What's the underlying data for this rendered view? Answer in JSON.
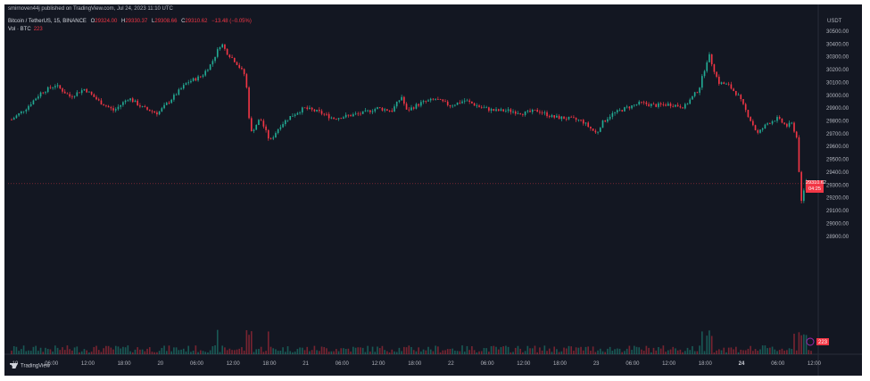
{
  "header": {
    "publisher": "smirnoven44j published on TradingView.com, Jul 24, 2023 11:10 UTC",
    "symbol": "Bitcoin / TetherUS, 15, BINANCE",
    "open_label": "O",
    "open": "29324.00",
    "high_label": "H",
    "high": "29330.37",
    "low_label": "L",
    "low": "29308.66",
    "close_label": "C",
    "close": "29310.62",
    "change": "−13.48 (−0.05%)",
    "vol_label": "Vol · BTC",
    "vol_value": "223",
    "currency": "USDT",
    "brand": "TradingView"
  },
  "price_tag": {
    "price": "29310.62",
    "countdown": "04:25"
  },
  "volume_tag": "223",
  "colors": {
    "up": "#22ab94",
    "down": "#f23645",
    "background": "#131722",
    "grid": "#1e222d",
    "text": "#b2b5be"
  },
  "chart_data": {
    "type": "candlestick",
    "interval": "15m",
    "ylim": [
      28800,
      30550
    ],
    "y_ticks": [
      30500,
      30400,
      30300,
      30200,
      30100,
      30000,
      29900,
      29800,
      29700,
      29600,
      29500,
      29400,
      29300,
      29200,
      29100,
      29000,
      28900
    ],
    "x_ticks": [
      "19",
      "06:00",
      "12:00",
      "18:00",
      "20",
      "06:00",
      "12:00",
      "18:00",
      "21",
      "06:00",
      "12:00",
      "18:00",
      "22",
      "06:00",
      "12:00",
      "18:00",
      "23",
      "06:00",
      "12:00",
      "18:00",
      "24",
      "06:00",
      "12:00"
    ],
    "x_ticks_bold": [
      "24"
    ],
    "close_path": [
      [
        0,
        29810
      ],
      [
        6,
        29900
      ],
      [
        12,
        30020
      ],
      [
        18,
        30080
      ],
      [
        24,
        29990
      ],
      [
        30,
        30050
      ],
      [
        36,
        29950
      ],
      [
        42,
        29880
      ],
      [
        48,
        29980
      ],
      [
        54,
        29900
      ],
      [
        60,
        29860
      ],
      [
        66,
        29980
      ],
      [
        72,
        30100
      ],
      [
        78,
        30150
      ],
      [
        82,
        30250
      ],
      [
        86,
        30410
      ],
      [
        88,
        30340
      ],
      [
        92,
        30260
      ],
      [
        96,
        30150
      ],
      [
        98,
        29700
      ],
      [
        102,
        29820
      ],
      [
        106,
        29640
      ],
      [
        110,
        29760
      ],
      [
        114,
        29830
      ],
      [
        120,
        29900
      ],
      [
        126,
        29870
      ],
      [
        132,
        29820
      ],
      [
        138,
        29840
      ],
      [
        144,
        29860
      ],
      [
        150,
        29900
      ],
      [
        156,
        29880
      ],
      [
        160,
        29990
      ],
      [
        162,
        29880
      ],
      [
        168,
        29940
      ],
      [
        174,
        29970
      ],
      [
        180,
        29920
      ],
      [
        186,
        29960
      ],
      [
        192,
        29910
      ],
      [
        198,
        29880
      ],
      [
        204,
        29880
      ],
      [
        210,
        29860
      ],
      [
        216,
        29880
      ],
      [
        222,
        29830
      ],
      [
        228,
        29820
      ],
      [
        234,
        29800
      ],
      [
        240,
        29700
      ],
      [
        242,
        29780
      ],
      [
        246,
        29850
      ],
      [
        252,
        29900
      ],
      [
        258,
        29940
      ],
      [
        264,
        29920
      ],
      [
        270,
        29930
      ],
      [
        276,
        29910
      ],
      [
        282,
        30050
      ],
      [
        286,
        30320
      ],
      [
        290,
        30100
      ],
      [
        294,
        30080
      ],
      [
        298,
        30000
      ],
      [
        302,
        29850
      ],
      [
        306,
        29700
      ],
      [
        310,
        29780
      ],
      [
        314,
        29820
      ],
      [
        318,
        29760
      ],
      [
        320,
        29780
      ],
      [
        322,
        29680
      ],
      [
        324,
        29160
      ],
      [
        326,
        29340
      ],
      [
        328,
        29310
      ]
    ]
  }
}
